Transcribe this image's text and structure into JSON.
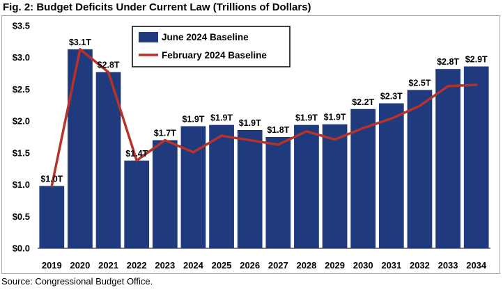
{
  "title": "Fig. 2: Budget Deficits Under Current Law (Trillions of Dollars)",
  "source": "Source: Congressional Budget Office.",
  "chart_data": {
    "type": "bar",
    "categories": [
      "2019",
      "2020",
      "2021",
      "2022",
      "2023",
      "2024",
      "2025",
      "2026",
      "2027",
      "2028",
      "2029",
      "2030",
      "2031",
      "2032",
      "2033",
      "2034"
    ],
    "series": [
      {
        "name": "June 2024 Baseline",
        "kind": "bar",
        "color": "#1f3a7d",
        "values": [
          0.98,
          3.13,
          2.77,
          1.38,
          1.7,
          1.92,
          1.94,
          1.86,
          1.75,
          1.94,
          1.95,
          2.19,
          2.28,
          2.49,
          2.82,
          2.86
        ],
        "labels": [
          "$1.0T",
          "$3.1T",
          "$2.8T",
          "$1.4T",
          "$1.7T",
          "$1.9T",
          "$1.9T",
          "$1.9T",
          "$1.8T",
          "$1.9T",
          "$1.9T",
          "$2.2T",
          "$2.3T",
          "$2.5T",
          "$2.8T",
          "$2.9T"
        ]
      },
      {
        "name": "February 2024 Baseline",
        "kind": "line",
        "color": "#b7322a",
        "values": [
          0.98,
          3.13,
          2.77,
          1.38,
          1.7,
          1.51,
          1.77,
          1.7,
          1.63,
          1.84,
          1.71,
          1.89,
          2.04,
          2.24,
          2.55,
          2.57
        ]
      }
    ],
    "yticks": [
      "$0.0",
      "$0.5",
      "$1.0",
      "$1.5",
      "$2.0",
      "$2.5",
      "$3.0",
      "$3.5"
    ],
    "ylim": [
      0,
      3.5
    ],
    "legend_position": "top-center",
    "grid": false
  }
}
